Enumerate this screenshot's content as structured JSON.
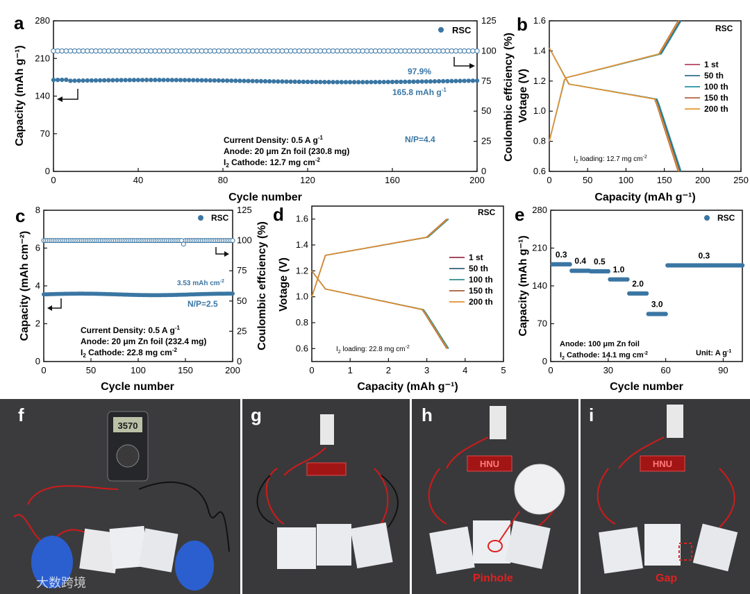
{
  "colors": {
    "blue": "#3a76a3",
    "red": "#c8102e",
    "black": "#111111"
  },
  "chart_data": [
    {
      "id": "a",
      "type": "scatter",
      "panel_label": "a",
      "legend": "RSC",
      "xlabel": "Cycle number",
      "ylabel_left": "Capacity (mAh g⁻¹)",
      "ylabel_right": "Coulombic effciency (%)",
      "xlim": [
        0,
        200
      ],
      "ylim_left": [
        0,
        280
      ],
      "ylim_right": [
        0,
        125
      ],
      "xticks": [
        0,
        40,
        80,
        120,
        160,
        200
      ],
      "yticks_left": [
        0,
        70,
        140,
        210,
        280
      ],
      "yticks_right": [
        0,
        25,
        50,
        75,
        100,
        125
      ],
      "series": [
        {
          "name": "Capacity",
          "axis": "left",
          "style": "filled",
          "x_start": 0,
          "x_end": 200,
          "x_step": 2,
          "values_desc": "flat ~168 mAh g⁻¹",
          "level": 168
        },
        {
          "name": "Coulombic efficiency",
          "axis": "right",
          "style": "open",
          "x_start": 0,
          "x_end": 200,
          "x_step": 2,
          "level": 100
        }
      ],
      "annotations": {
        "ce": "97.9%",
        "cap_main": "165.8 mAh g",
        "cap_sup": "-1",
        "np": "N/P=4.4",
        "cd_main": "Current Density: 0.5 A g",
        "cd_sup": "-1",
        "anode": "Anode: 20 μm Zn foil (230.8 mg)",
        "cathode_pre": "I",
        "cathode_sub": "2",
        "cathode_post": " Cathode: 12.7  mg cm",
        "cathode_sup": "-2"
      }
    },
    {
      "id": "b",
      "type": "line",
      "panel_label": "b",
      "title": "RSC",
      "xlabel": "Capacity (mAh g⁻¹)",
      "ylabel": "Votage (V)",
      "xlim": [
        0,
        250
      ],
      "ylim": [
        0.6,
        1.6
      ],
      "xticks": [
        0,
        50,
        100,
        150,
        200,
        250
      ],
      "yticks": [
        0.6,
        0.8,
        1.0,
        1.2,
        1.4,
        1.6
      ],
      "series": [
        {
          "name": "1 st",
          "color": "#b5455f",
          "cmax": 170
        },
        {
          "name": "50 th",
          "color": "#2f6f86",
          "cmax": 171
        },
        {
          "name": "100 th",
          "color": "#268fa0",
          "cmax": 172
        },
        {
          "name": "150 th",
          "color": "#b3623f",
          "cmax": 168
        },
        {
          "name": "200 th",
          "color": "#e7962b",
          "cmax": 169
        }
      ],
      "annotation": {
        "pre": "I",
        "sub": "2",
        "post": " loading: 12.7 mg cm",
        "sup": "-2"
      }
    },
    {
      "id": "c",
      "type": "scatter",
      "panel_label": "c",
      "legend": "RSC",
      "xlabel": "Cycle number",
      "ylabel_left": "Capacity (mAh cm⁻²)",
      "ylabel_right": "Coulombic effciency (%)",
      "xlim": [
        0,
        200
      ],
      "ylim_left": [
        0,
        8
      ],
      "ylim_right": [
        0,
        125
      ],
      "xticks": [
        0,
        50,
        100,
        150,
        200
      ],
      "yticks_left": [
        0,
        2,
        4,
        6,
        8
      ],
      "yticks_right": [
        0,
        25,
        50,
        75,
        100,
        125
      ],
      "series": [
        {
          "name": "Capacity",
          "axis": "left",
          "style": "filled",
          "level": 3.55
        },
        {
          "name": "Coulombic efficiency",
          "axis": "right",
          "style": "open",
          "level": 100
        }
      ],
      "annotations": {
        "cap_main": "3.53 mAh cm",
        "cap_sup": "-2",
        "np": "N/P=2.5",
        "cd_main": "Current Density: 0.5 A g",
        "cd_sup": "-1",
        "anode": "Anode: 20 μm Zn foil (232.4 mg)",
        "cathode_pre": "I",
        "cathode_sub": "2",
        "cathode_post": " Cathode: 22.8  mg cm",
        "cathode_sup": "-2"
      }
    },
    {
      "id": "d",
      "type": "line",
      "panel_label": "d",
      "title": "RSC",
      "xlabel": "Capacity (mAh g⁻¹)",
      "ylabel": "Votage (V)",
      "xlim": [
        0,
        5
      ],
      "ylim": [
        0.5,
        1.7
      ],
      "xticks": [
        0,
        1,
        2,
        3,
        4,
        5
      ],
      "yticks": [
        0.6,
        0.8,
        1.0,
        1.2,
        1.4,
        1.6
      ],
      "series": [
        {
          "name": "1 st",
          "color": "#9c2f4a",
          "cmax": 3.55
        },
        {
          "name": "50 th",
          "color": "#2f5f78",
          "cmax": 3.56
        },
        {
          "name": "100 th",
          "color": "#2e8b8f",
          "cmax": 3.57
        },
        {
          "name": "150 th",
          "color": "#a6593a",
          "cmax": 3.52
        },
        {
          "name": "200 th",
          "color": "#e08f2a",
          "cmax": 3.54
        }
      ],
      "annotation": {
        "pre": "I",
        "sub": "2",
        "post": " loading: 22.8 mg cm",
        "sup": "-2"
      }
    },
    {
      "id": "e",
      "type": "scatter",
      "panel_label": "e",
      "legend": "RSC",
      "xlabel": "Cycle number",
      "ylabel": "Capacity (mAh g⁻¹)",
      "xlim": [
        0,
        100
      ],
      "ylim": [
        0,
        280
      ],
      "xticks": [
        0,
        30,
        60,
        90
      ],
      "yticks": [
        0,
        70,
        140,
        210,
        280
      ],
      "segments": [
        {
          "rate": "0.3",
          "x0": 1,
          "x1": 10,
          "value": 180
        },
        {
          "rate": "0.4",
          "x0": 11,
          "x1": 20,
          "value": 168
        },
        {
          "rate": "0.5",
          "x0": 21,
          "x1": 30,
          "value": 167
        },
        {
          "rate": "1.0",
          "x0": 31,
          "x1": 40,
          "value": 152
        },
        {
          "rate": "2.0",
          "x0": 41,
          "x1": 50,
          "value": 126
        },
        {
          "rate": "3.0",
          "x0": 51,
          "x1": 60,
          "value": 88
        },
        {
          "rate": "0.3",
          "x0": 61,
          "x1": 100,
          "value": 178
        }
      ],
      "annotations": {
        "anode": "Anode: 100 μm Zn foil",
        "cathode_pre": "I",
        "cathode_sub": "2",
        "cathode_post": " Cathode: 14.1  mg cm",
        "cathode_sup": "-2",
        "unit": "Unit: A g",
        "unit_sup": "-1"
      }
    }
  ],
  "photos": [
    {
      "label": "f",
      "meter": "3570"
    },
    {
      "label": "g",
      "display": ""
    },
    {
      "label": "h",
      "display": "HNU",
      "callout": "Pinhole"
    },
    {
      "label": "i",
      "display": "HNU",
      "callout": "Gap"
    }
  ],
  "watermark": "大数跨境"
}
